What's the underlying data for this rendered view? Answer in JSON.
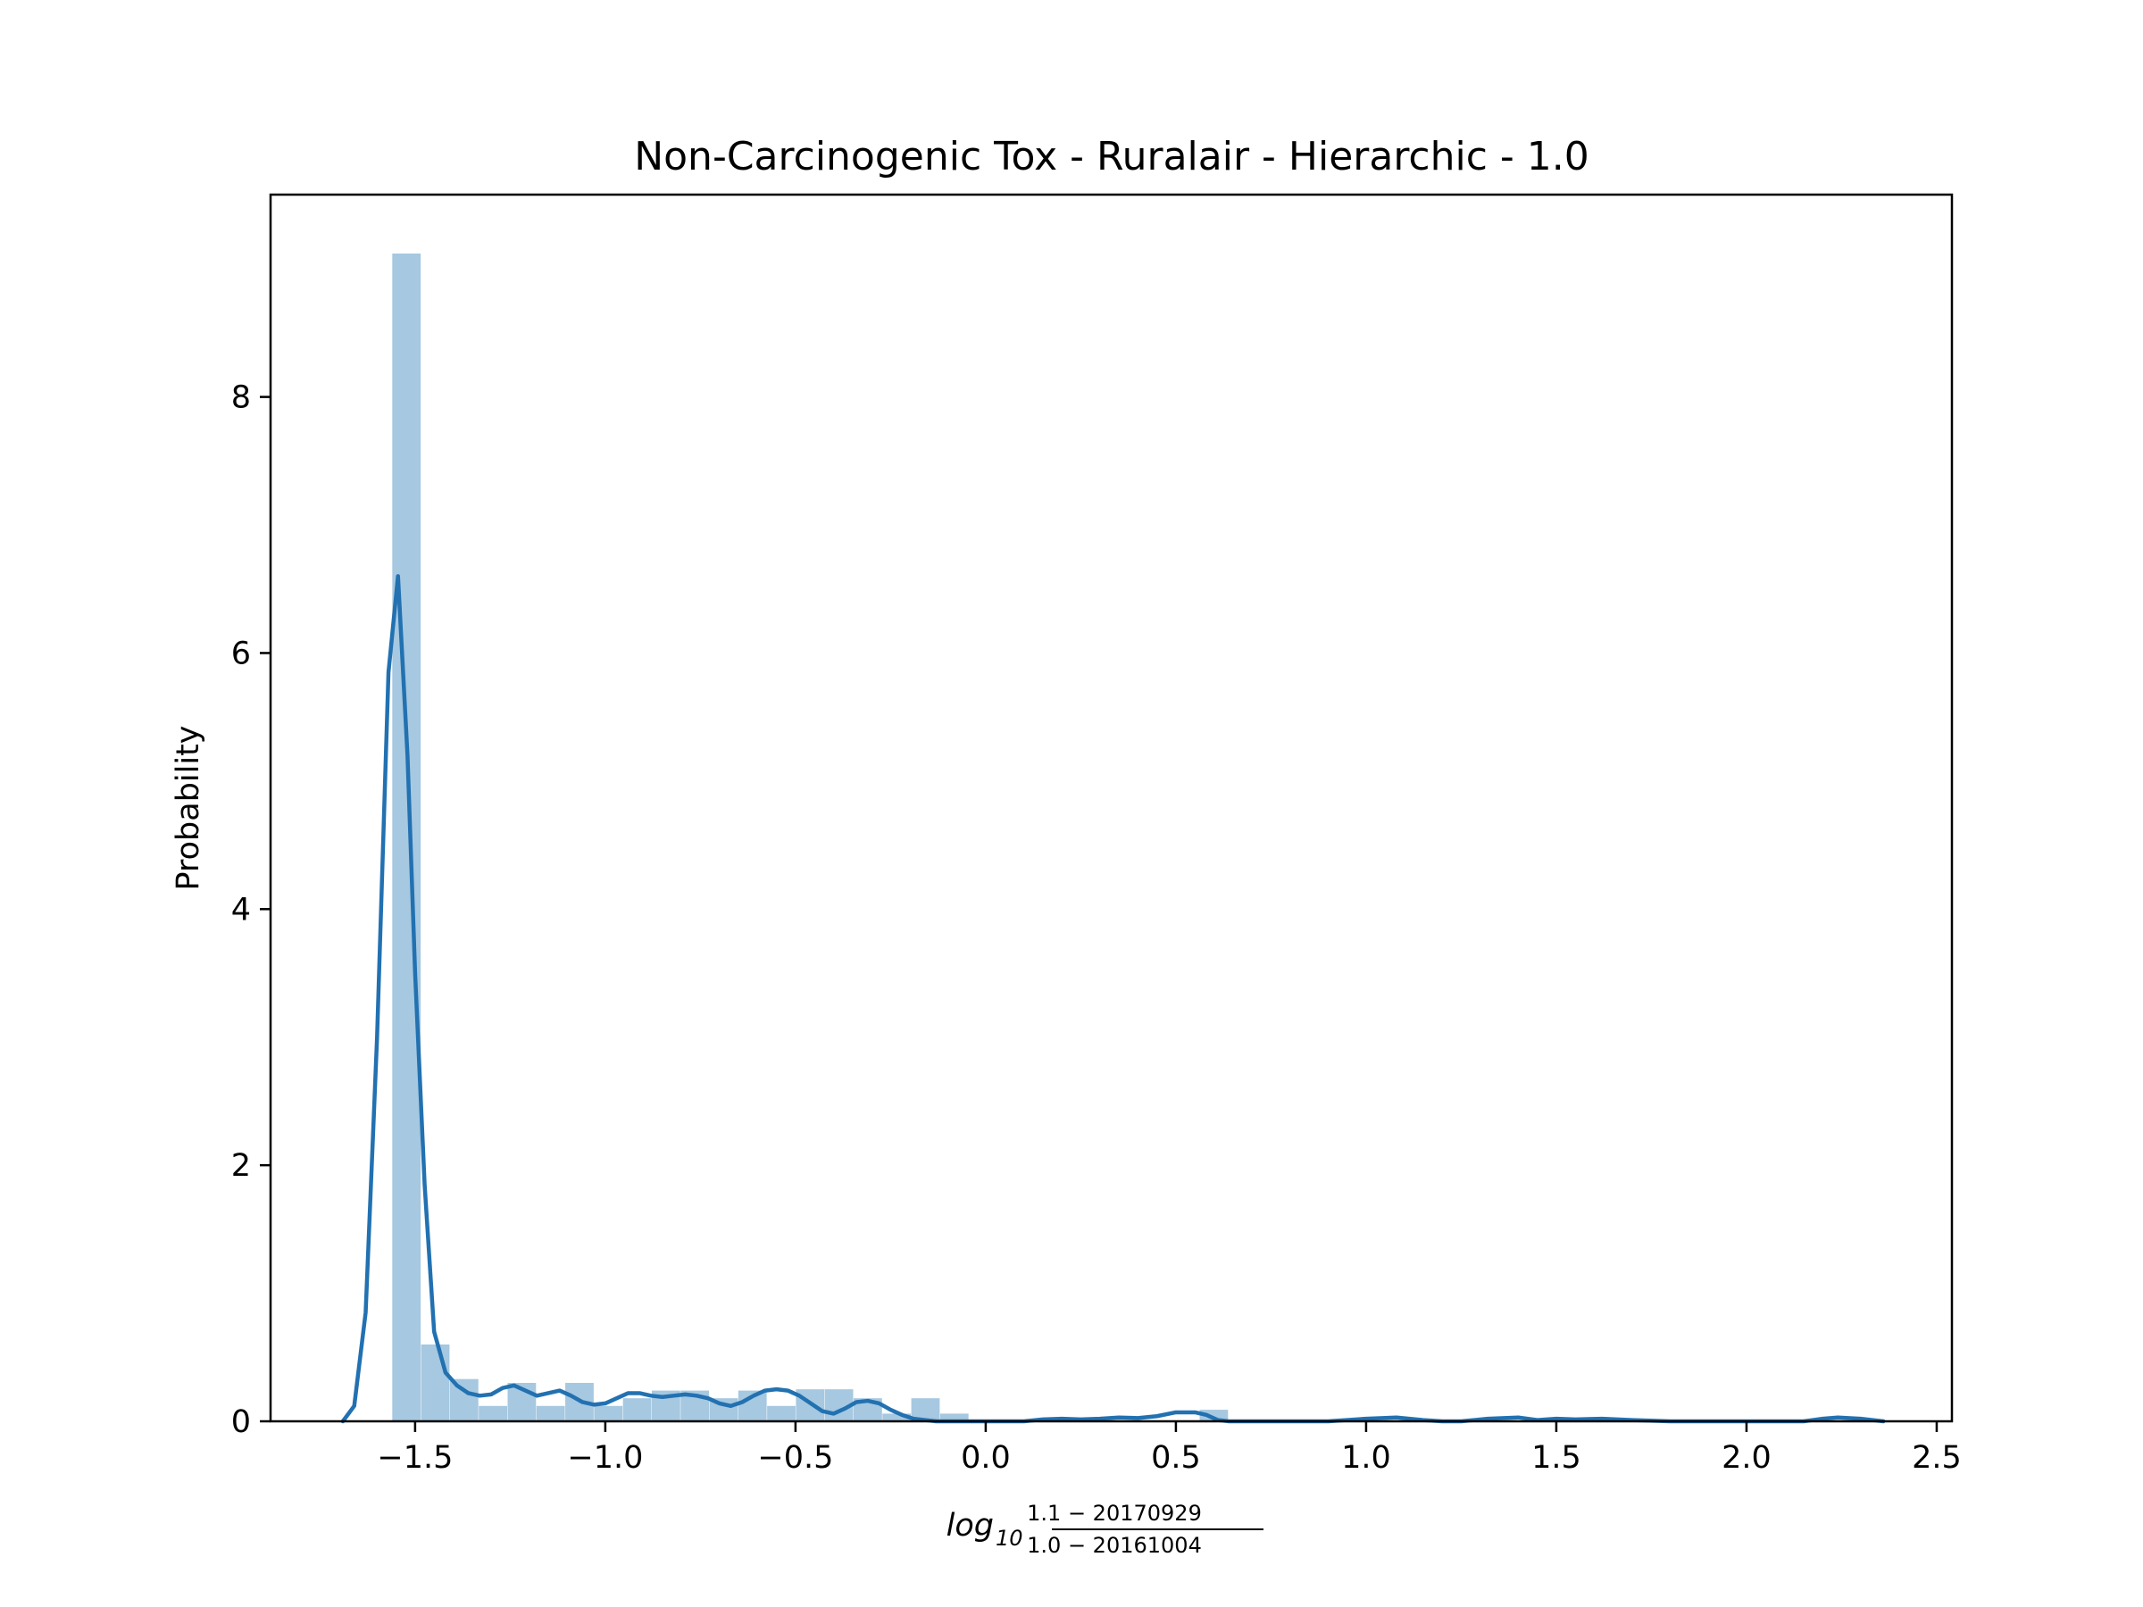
{
  "chart_data": {
    "type": "bar",
    "title": "Non-Carcinogenic Tox - Ruralair - Hierarchic - 1.0",
    "ylabel": "Probability",
    "xlabel": {
      "main": "log",
      "sub": "10",
      "numerator": "1.1 − 20170929",
      "denominator": "1.0 − 20161004"
    },
    "xlim": [
      -1.88,
      2.54
    ],
    "ylim": [
      0,
      9.58
    ],
    "xticks": [
      {
        "value": -1.5,
        "label": "−1.5"
      },
      {
        "value": -1.0,
        "label": "−1.0"
      },
      {
        "value": -0.5,
        "label": "−0.5"
      },
      {
        "value": 0.0,
        "label": "0.0"
      },
      {
        "value": 0.5,
        "label": "0.5"
      },
      {
        "value": 1.0,
        "label": "1.0"
      },
      {
        "value": 1.5,
        "label": "1.5"
      },
      {
        "value": 2.0,
        "label": "2.0"
      },
      {
        "value": 2.5,
        "label": "2.5"
      }
    ],
    "yticks": [
      {
        "value": 0,
        "label": "0"
      },
      {
        "value": 2,
        "label": "2"
      },
      {
        "value": 4,
        "label": "4"
      },
      {
        "value": 6,
        "label": "6"
      },
      {
        "value": 8,
        "label": "8"
      }
    ],
    "histogram": {
      "bin_start": -1.56,
      "bin_width": 0.0758,
      "values": [
        9.12,
        0.6,
        0.33,
        0.12,
        0.3,
        0.12,
        0.3,
        0.12,
        0.18,
        0.24,
        0.24,
        0.18,
        0.24,
        0.12,
        0.25,
        0.25,
        0.18,
        0.06,
        0.18,
        0.06,
        0.0,
        0.0,
        0.0,
        0.0,
        0.0,
        0.0,
        0.0,
        0.0,
        0.09,
        0.0,
        0.0,
        0.0,
        0.0,
        0.0,
        0.0,
        0.0,
        0.0,
        0.0,
        0.0,
        0.0,
        0.0,
        0.0,
        0.0,
        0.0,
        0.0,
        0.0,
        0.0,
        0.0,
        0.0,
        0.0
      ],
      "color": "#a6c8e0"
    },
    "kde": {
      "color": "#2271b1",
      "x": [
        -1.69,
        -1.66,
        -1.63,
        -1.6,
        -1.57,
        -1.545,
        -1.52,
        -1.5,
        -1.475,
        -1.45,
        -1.42,
        -1.39,
        -1.36,
        -1.33,
        -1.3,
        -1.27,
        -1.24,
        -1.21,
        -1.18,
        -1.15,
        -1.12,
        -1.09,
        -1.06,
        -1.03,
        -1.0,
        -0.97,
        -0.94,
        -0.91,
        -0.88,
        -0.85,
        -0.82,
        -0.79,
        -0.76,
        -0.73,
        -0.7,
        -0.67,
        -0.64,
        -0.61,
        -0.58,
        -0.55,
        -0.52,
        -0.49,
        -0.46,
        -0.43,
        -0.4,
        -0.37,
        -0.34,
        -0.31,
        -0.28,
        -0.25,
        -0.22,
        -0.19,
        -0.16,
        -0.13,
        -0.1,
        -0.07,
        -0.04,
        0.0,
        0.05,
        0.1,
        0.15,
        0.2,
        0.25,
        0.3,
        0.35,
        0.4,
        0.45,
        0.5,
        0.55,
        0.58,
        0.61,
        0.64,
        0.7,
        0.8,
        0.9,
        1.0,
        1.08,
        1.15,
        1.2,
        1.25,
        1.32,
        1.4,
        1.45,
        1.5,
        1.55,
        1.62,
        1.7,
        1.8,
        1.9,
        2.0,
        2.1,
        2.15,
        2.2,
        2.24,
        2.3,
        2.36
      ],
      "y": [
        0.0,
        0.12,
        0.85,
        3.0,
        5.85,
        6.6,
        5.2,
        3.5,
        1.85,
        0.7,
        0.38,
        0.28,
        0.22,
        0.2,
        0.21,
        0.26,
        0.28,
        0.24,
        0.2,
        0.22,
        0.24,
        0.2,
        0.15,
        0.13,
        0.14,
        0.18,
        0.22,
        0.22,
        0.2,
        0.19,
        0.2,
        0.21,
        0.2,
        0.18,
        0.14,
        0.12,
        0.15,
        0.2,
        0.24,
        0.25,
        0.24,
        0.2,
        0.14,
        0.08,
        0.06,
        0.1,
        0.15,
        0.16,
        0.14,
        0.09,
        0.05,
        0.02,
        0.01,
        0.0,
        0.0,
        0.0,
        0.0,
        0.0,
        0.0,
        0.0,
        0.015,
        0.02,
        0.015,
        0.02,
        0.03,
        0.025,
        0.04,
        0.07,
        0.07,
        0.05,
        0.01,
        0.0,
        0.0,
        0.0,
        0.0,
        0.02,
        0.03,
        0.01,
        0.0,
        0.0,
        0.02,
        0.03,
        0.01,
        0.02,
        0.015,
        0.02,
        0.01,
        0.0,
        0.0,
        0.0,
        0.0,
        0.0,
        0.02,
        0.03,
        0.02,
        0.0
      ]
    }
  }
}
